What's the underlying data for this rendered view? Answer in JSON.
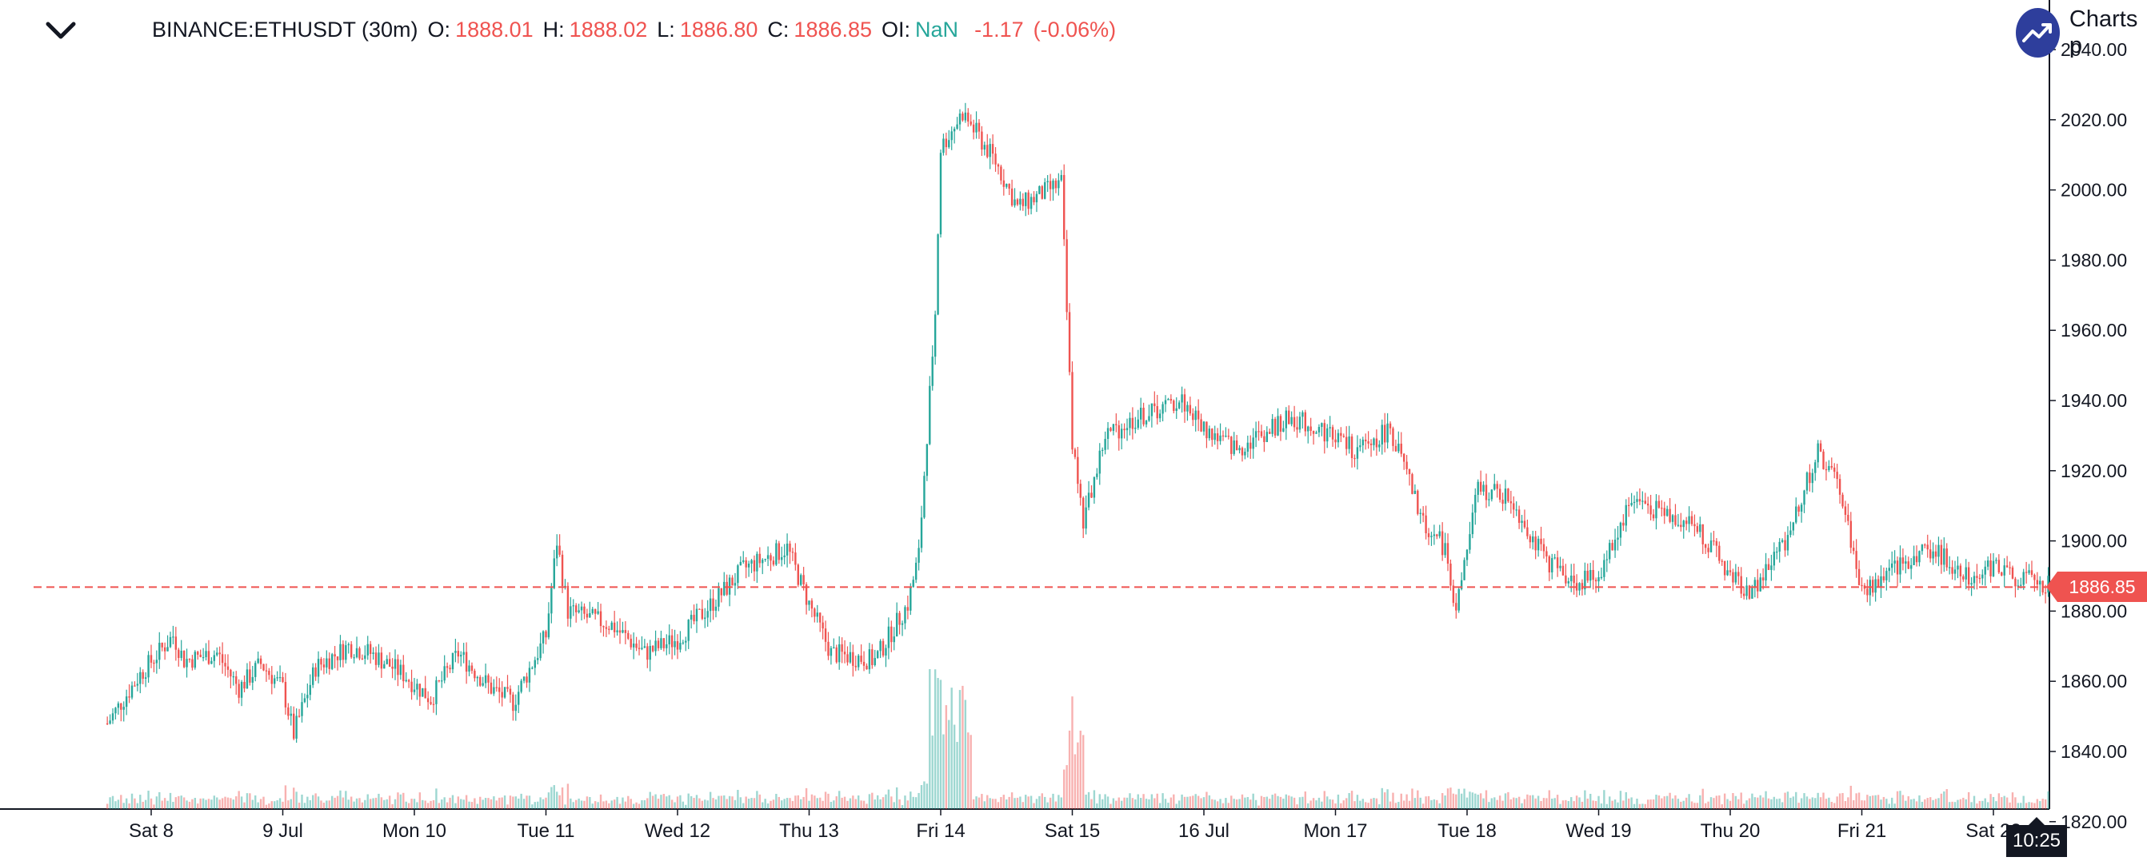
{
  "header": {
    "symbol": "BINANCE:ETHUSDT (30m)",
    "open_label": "O:",
    "open_value": "1888.01",
    "high_label": "H:",
    "high_value": "1888.02",
    "low_label": "L:",
    "low_value": "1886.80",
    "close_label": "C:",
    "close_value": "1886.85",
    "oi_label": "OI:",
    "oi_value": "NaN",
    "change": "-1.17",
    "change_pct": "(-0.06%)"
  },
  "brand": {
    "text": "Charts p",
    "icon": "trending-up-icon"
  },
  "collapse_icon": "chevron-down-icon",
  "colors": {
    "up": "#26a69a",
    "down": "#ef5350",
    "price_line": "#ef5350",
    "axis_text": "#131722",
    "brand": "#2e3e9c"
  },
  "price_axis": {
    "tag": "1886.85",
    "time_tag": "10:25"
  },
  "chart_data": {
    "type": "candlestick",
    "symbol": "BINANCE:ETHUSDT",
    "interval": "30m",
    "ylim": [
      1805,
      2040
    ],
    "yticks": [
      1820,
      1840,
      1860,
      1880,
      1900,
      1920,
      1940,
      1960,
      1980,
      2000,
      2020,
      2040
    ],
    "ytick_labels": [
      "1820.00",
      "1840.00",
      "1860.00",
      "1880.00",
      "1900.00",
      "1920.00",
      "1940.00",
      "1960.00",
      "1980.00",
      "2000.00",
      "2020.00",
      "2040.00"
    ],
    "xticks": [
      "Sat 8",
      "9 Jul",
      "Mon 10",
      "Tue 11",
      "Wed 12",
      "Thu 13",
      "Fri 14",
      "Sat 15",
      "16 Jul",
      "Mon 17",
      "Tue 18",
      "Wed 19",
      "Thu 20",
      "Fri 21",
      "Sat 22"
    ],
    "last_price": 1886.85,
    "last_time": "10:25",
    "price_path": [
      [
        "Sat 7 16:00",
        1848
      ],
      [
        "Sat 7 22:00",
        1862
      ],
      [
        "Sat 8 04:00",
        1873
      ],
      [
        "Sat 8 06:00",
        1866
      ],
      [
        "Sat 8 12:00",
        1868
      ],
      [
        "Sat 8 16:00",
        1858
      ],
      [
        "Sat 8 20:00",
        1865
      ],
      [
        "9 Jul 00:00",
        1858
      ],
      [
        "9 Jul 02:00",
        1845
      ],
      [
        "9 Jul 06:00",
        1864
      ],
      [
        "9 Jul 12:00",
        1870
      ],
      [
        "9 Jul 16:00",
        1868
      ],
      [
        "9 Jul 22:00",
        1862
      ],
      [
        "Mon 10 03:00",
        1855
      ],
      [
        "Mon 10 08:00",
        1868
      ],
      [
        "Mon 10 14:00",
        1858
      ],
      [
        "Mon 10 18:00",
        1854
      ],
      [
        "Tue 11 00:00",
        1873
      ],
      [
        "Tue 11 02:00",
        1900
      ],
      [
        "Tue 11 04:00",
        1880
      ],
      [
        "Tue 11 12:00",
        1876
      ],
      [
        "Tue 11 18:00",
        1868
      ],
      [
        "Wed 12 00:00",
        1872
      ],
      [
        "Wed 12 08:00",
        1885
      ],
      [
        "Wed 12 12:00",
        1892
      ],
      [
        "Wed 12 20:00",
        1898
      ],
      [
        "Thu 13 00:00",
        1882
      ],
      [
        "Thu 13 04:00",
        1868
      ],
      [
        "Thu 13 12:00",
        1866
      ],
      [
        "Thu 13 18:00",
        1882
      ],
      [
        "Thu 13 20:00",
        1896
      ],
      [
        "Thu 13 23:00",
        1965
      ],
      [
        "Fri 14 00:00",
        2012
      ],
      [
        "Fri 14 04:00",
        2022
      ],
      [
        "Fri 14 10:00",
        2008
      ],
      [
        "Fri 14 14:00",
        1995
      ],
      [
        "Fri 14 22:00",
        2002
      ],
      [
        "Sat 15 00:00",
        1928
      ],
      [
        "Sat 15 02:00",
        1905
      ],
      [
        "Sat 15 06:00",
        1930
      ],
      [
        "Sat 15 12:00",
        1935
      ],
      [
        "Sat 15 20:00",
        1940
      ],
      [
        "16 Jul 00:00",
        1932
      ],
      [
        "16 Jul 06:00",
        1926
      ],
      [
        "16 Jul 10:00",
        1930
      ],
      [
        "16 Jul 16:00",
        1935
      ],
      [
        "Mon 17 00:00",
        1930
      ],
      [
        "Mon 17 04:00",
        1925
      ],
      [
        "Mon 17 10:00",
        1932
      ],
      [
        "Mon 17 16:00",
        1905
      ],
      [
        "Mon 17 20:00",
        1898
      ],
      [
        "Mon 17 22:00",
        1880
      ],
      [
        "Tue 18 02:00",
        1915
      ],
      [
        "Tue 18 08:00",
        1912
      ],
      [
        "Tue 18 14:00",
        1895
      ],
      [
        "Tue 18 20:00",
        1888
      ],
      [
        "Wed 19 00:00",
        1890
      ],
      [
        "Wed 19 06:00",
        1912
      ],
      [
        "Wed 19 12:00",
        1908
      ],
      [
        "Wed 19 18:00",
        1904
      ],
      [
        "Thu 20 00:00",
        1890
      ],
      [
        "Thu 20 04:00",
        1885
      ],
      [
        "Thu 20 10:00",
        1900
      ],
      [
        "Thu 20 16:00",
        1925
      ],
      [
        "Thu 20 20:00",
        1915
      ],
      [
        "Fri 21 00:00",
        1885
      ],
      [
        "Fri 21 06:00",
        1892
      ],
      [
        "Fri 21 12:00",
        1898
      ],
      [
        "Fri 21 20:00",
        1890
      ],
      [
        "Sat 22 00:00",
        1893
      ],
      [
        "Sat 22 04:00",
        1890
      ],
      [
        "Sat 22 10:25",
        1886.85
      ]
    ],
    "volume_peaks": [
      [
        "Thu 13 23:00",
        "high"
      ],
      [
        "Fri 14 02:00",
        "high"
      ],
      [
        "Sat 15 00:00",
        "high"
      ]
    ],
    "grid": false
  }
}
